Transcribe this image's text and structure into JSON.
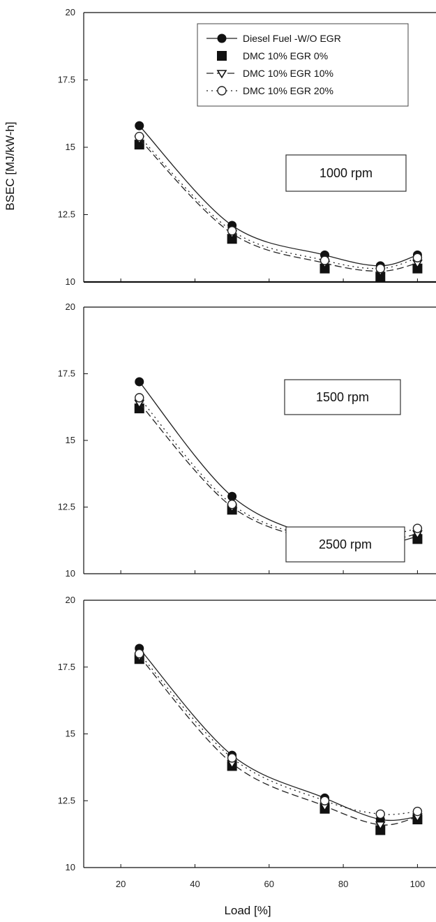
{
  "chart_data": {
    "type": "line",
    "ylabel": "BSEC [MJ/kW-h]",
    "xlabel": "Load [%]",
    "xlim": [
      10,
      105
    ],
    "ylim": [
      10,
      20
    ],
    "x_ticks": [
      20,
      40,
      60,
      80,
      100
    ],
    "y_ticks": [
      10,
      12.5,
      15,
      17.5,
      20
    ],
    "y_tick_labels": [
      "10",
      "12.5",
      "15",
      "17.5",
      "20"
    ],
    "legend": {
      "placement": "top-right",
      "entries": [
        "Diesel Fuel -W/O EGR",
        "DMC 10% EGR 0%",
        "DMC 10% EGR 10%",
        "DMC 10% EGR 20%"
      ]
    },
    "series_styles": [
      {
        "line": "solid",
        "marker": "circle"
      },
      {
        "line": "none",
        "marker": "square"
      },
      {
        "line": "dashed",
        "marker": "triangle-down"
      },
      {
        "line": "dotted",
        "marker": "open-circle"
      }
    ],
    "panels": [
      {
        "annotation": "1000 rpm",
        "x": [
          25,
          50,
          75,
          90,
          100
        ],
        "series": [
          {
            "name": "Diesel Fuel -W/O EGR",
            "values": [
              15.8,
              12.1,
              11.0,
              10.6,
              11.0
            ]
          },
          {
            "name": "DMC 10% EGR 0%",
            "values": [
              15.1,
              11.6,
              10.5,
              10.2,
              10.5
            ]
          },
          {
            "name": "DMC 10% EGR 10%",
            "values": [
              15.3,
              11.8,
              10.7,
              10.4,
              10.7
            ]
          },
          {
            "name": "DMC 10% EGR 20%",
            "values": [
              15.4,
              11.9,
              10.8,
              10.5,
              10.9
            ]
          }
        ]
      },
      {
        "annotation": "1500 rpm",
        "x": [
          25,
          50,
          75,
          90,
          100
        ],
        "series": [
          {
            "name": "Diesel Fuel -W/O EGR",
            "values": [
              17.2,
              12.9,
              11.3,
              11.1,
              11.4
            ]
          },
          {
            "name": "DMC 10% EGR 0%",
            "values": [
              16.2,
              12.4,
              11.0,
              10.9,
              11.3
            ]
          },
          {
            "name": "DMC 10% EGR 10%",
            "values": [
              16.4,
              12.5,
              11.2,
              11.2,
              11.5
            ]
          },
          {
            "name": "DMC 10% EGR 20%",
            "values": [
              16.6,
              12.6,
              11.3,
              11.4,
              11.7
            ]
          }
        ]
      },
      {
        "annotation": "2500 rpm",
        "x": [
          25,
          50,
          75,
          90,
          100
        ],
        "series": [
          {
            "name": "Diesel Fuel -W/O EGR",
            "values": [
              18.2,
              14.2,
              12.6,
              11.8,
              11.9
            ]
          },
          {
            "name": "DMC 10% EGR 0%",
            "values": [
              17.8,
              13.8,
              12.2,
              11.4,
              11.8
            ]
          },
          {
            "name": "DMC 10% EGR 10%",
            "values": [
              17.9,
              13.9,
              12.3,
              11.6,
              11.9
            ]
          },
          {
            "name": "DMC 10% EGR 20%",
            "values": [
              18.0,
              14.1,
              12.5,
              12.0,
              12.1
            ]
          }
        ]
      }
    ]
  }
}
